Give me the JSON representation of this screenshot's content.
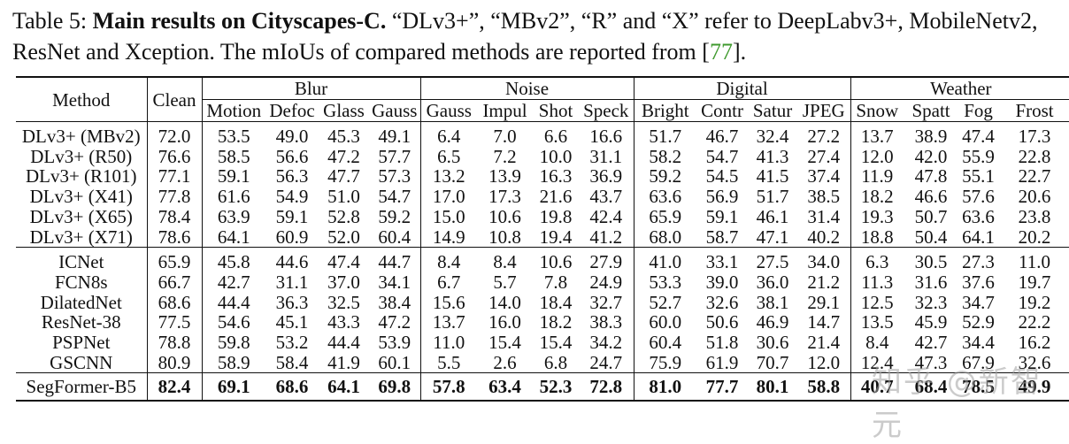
{
  "caption": {
    "label": "Table 5: ",
    "title": "Main results on Cityscapes-C.",
    "text_a": " “DLv3+”, “MBv2”, “R” and “X” refer to DeepLabv3+, MobileNetv2, ResNet and Xception. The mIoUs of compared methods are reported from [",
    "ref": "77",
    "text_b": "]."
  },
  "header": {
    "method": "Method",
    "clean": "Clean",
    "groups": [
      "Blur",
      "Noise",
      "Digital",
      "Weather"
    ],
    "columns": [
      "Motion",
      "Defoc",
      "Glass",
      "Gauss",
      "Gauss",
      "Impul",
      "Shot",
      "Speck",
      "Bright",
      "Contr",
      "Satur",
      "JPEG",
      "Snow",
      "Spatt",
      "Fog",
      "Frost"
    ]
  },
  "block1": [
    {
      "method": "DLv3+ (MBv2)",
      "clean": "72.0",
      "vals": [
        "53.5",
        "49.0",
        "45.3",
        "49.1",
        "6.4",
        "7.0",
        "6.6",
        "16.6",
        "51.7",
        "46.7",
        "32.4",
        "27.2",
        "13.7",
        "38.9",
        "47.4",
        "17.3"
      ]
    },
    {
      "method": "DLv3+ (R50)",
      "clean": "76.6",
      "vals": [
        "58.5",
        "56.6",
        "47.2",
        "57.7",
        "6.5",
        "7.2",
        "10.0",
        "31.1",
        "58.2",
        "54.7",
        "41.3",
        "27.4",
        "12.0",
        "42.0",
        "55.9",
        "22.8"
      ]
    },
    {
      "method": "DLv3+ (R101)",
      "clean": "77.1",
      "vals": [
        "59.1",
        "56.3",
        "47.7",
        "57.3",
        "13.2",
        "13.9",
        "16.3",
        "36.9",
        "59.2",
        "54.5",
        "41.5",
        "37.4",
        "11.9",
        "47.8",
        "55.1",
        "22.7"
      ]
    },
    {
      "method": "DLv3+ (X41)",
      "clean": "77.8",
      "vals": [
        "61.6",
        "54.9",
        "51.0",
        "54.7",
        "17.0",
        "17.3",
        "21.6",
        "43.7",
        "63.6",
        "56.9",
        "51.7",
        "38.5",
        "18.2",
        "46.6",
        "57.6",
        "20.6"
      ]
    },
    {
      "method": "DLv3+ (X65)",
      "clean": "78.4",
      "vals": [
        "63.9",
        "59.1",
        "52.8",
        "59.2",
        "15.0",
        "10.6",
        "19.8",
        "42.4",
        "65.9",
        "59.1",
        "46.1",
        "31.4",
        "19.3",
        "50.7",
        "63.6",
        "23.8"
      ]
    },
    {
      "method": "DLv3+ (X71)",
      "clean": "78.6",
      "vals": [
        "64.1",
        "60.9",
        "52.0",
        "60.4",
        "14.9",
        "10.8",
        "19.4",
        "41.2",
        "68.0",
        "58.7",
        "47.1",
        "40.2",
        "18.8",
        "50.4",
        "64.1",
        "20.2"
      ]
    }
  ],
  "block2": [
    {
      "method": "ICNet",
      "clean": "65.9",
      "vals": [
        "45.8",
        "44.6",
        "47.4",
        "44.7",
        "8.4",
        "8.4",
        "10.6",
        "27.9",
        "41.0",
        "33.1",
        "27.5",
        "34.0",
        "6.3",
        "30.5",
        "27.3",
        "11.0"
      ]
    },
    {
      "method": "FCN8s",
      "clean": "66.7",
      "vals": [
        "42.7",
        "31.1",
        "37.0",
        "34.1",
        "6.7",
        "5.7",
        "7.8",
        "24.9",
        "53.3",
        "39.0",
        "36.0",
        "21.2",
        "11.3",
        "31.6",
        "37.6",
        "19.7"
      ]
    },
    {
      "method": "DilatedNet",
      "clean": "68.6",
      "vals": [
        "44.4",
        "36.3",
        "32.5",
        "38.4",
        "15.6",
        "14.0",
        "18.4",
        "32.7",
        "52.7",
        "32.6",
        "38.1",
        "29.1",
        "12.5",
        "32.3",
        "34.7",
        "19.2"
      ]
    },
    {
      "method": "ResNet-38",
      "clean": "77.5",
      "vals": [
        "54.6",
        "45.1",
        "43.3",
        "47.2",
        "13.7",
        "16.0",
        "18.2",
        "38.3",
        "60.0",
        "50.6",
        "46.9",
        "14.7",
        "13.5",
        "45.9",
        "52.9",
        "22.2"
      ]
    },
    {
      "method": "PSPNet",
      "clean": "78.8",
      "vals": [
        "59.8",
        "53.2",
        "44.4",
        "53.9",
        "11.0",
        "15.4",
        "15.4",
        "34.2",
        "60.4",
        "51.8",
        "30.6",
        "21.4",
        "8.4",
        "42.7",
        "34.4",
        "16.2"
      ]
    },
    {
      "method": "GSCNN",
      "clean": "80.9",
      "vals": [
        "58.9",
        "58.4",
        "41.9",
        "60.1",
        "5.5",
        "2.6",
        "6.8",
        "24.7",
        "75.9",
        "61.9",
        "70.7",
        "12.0",
        "12.4",
        "47.3",
        "67.9",
        "32.6"
      ]
    }
  ],
  "final": {
    "method": "SegFormer-B5",
    "clean": "82.4",
    "vals": [
      "69.1",
      "68.6",
      "64.1",
      "69.8",
      "57.8",
      "63.4",
      "52.3",
      "72.8",
      "81.0",
      "77.7",
      "80.1",
      "58.8",
      "40.7",
      "68.4",
      "78.5",
      "49.9"
    ]
  },
  "watermark": "知乎 @新智元"
}
